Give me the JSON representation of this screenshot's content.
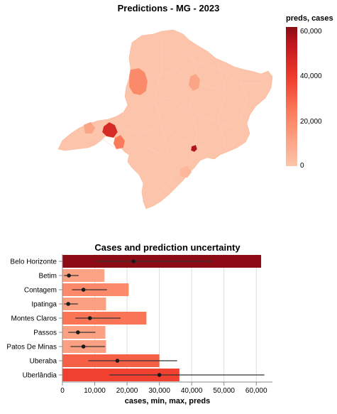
{
  "map_title": "Predictions - MG - 2023",
  "legend": {
    "title": "preds, cases",
    "ticks": [
      "60,000",
      "40,000",
      "20,000",
      "0"
    ],
    "tick_values": [
      60000,
      40000,
      20000,
      0
    ],
    "domain": [
      0,
      62000
    ],
    "colors": [
      "#fcc5ab",
      "#fca487",
      "#fb7a5a",
      "#ef3b2c",
      "#c0161d",
      "#8a0b15"
    ]
  },
  "chart_data": {
    "type": "bar",
    "title": "Cases and prediction uncertainty",
    "xlabel": "cases, min, max, preds",
    "ylabel": "",
    "xlim": [
      0,
      65000
    ],
    "x_ticks": [
      0,
      10000,
      20000,
      30000,
      40000,
      50000,
      60000
    ],
    "x_tick_labels": [
      "0",
      "10,000",
      "20,000",
      "30,000",
      "40,000",
      "50,000",
      "60,000"
    ],
    "grid": true,
    "categories": [
      "Belo Horizonte",
      "Betim",
      "Contagem",
      "Ipatinga",
      "Montes Claros",
      "Passos",
      "Patos De Minas",
      "Uberaba",
      "Uberlândia"
    ],
    "cases": [
      61500,
      13000,
      20500,
      13500,
      26000,
      13300,
      13500,
      30000,
      36200
    ],
    "min": [
      10500,
      500,
      3000,
      500,
      4000,
      1800,
      2500,
      8000,
      14500
    ],
    "max": [
      46500,
      5000,
      13800,
      4800,
      18000,
      10200,
      13200,
      35500,
      62500
    ],
    "preds": [
      22000,
      2000,
      6500,
      1800,
      8500,
      4800,
      6500,
      17000,
      30000
    ]
  }
}
